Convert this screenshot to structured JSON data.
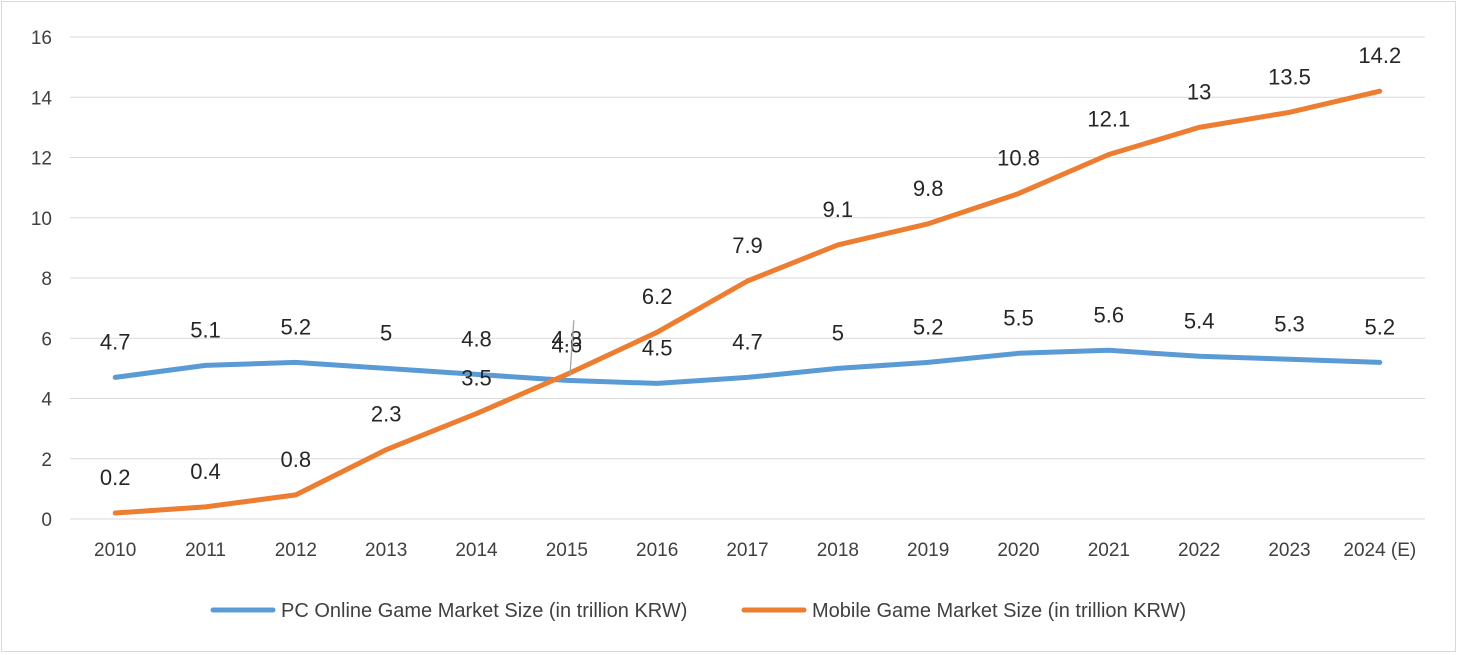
{
  "chart_data": {
    "type": "line",
    "title": "",
    "xlabel": "",
    "ylabel": "",
    "ylim": [
      0,
      16
    ],
    "yticks": [
      0,
      2,
      4,
      6,
      8,
      10,
      12,
      14,
      16
    ],
    "grid": "horizontal",
    "legend_position": "bottom",
    "categories": [
      "2010",
      "2011",
      "2012",
      "2013",
      "2014",
      "2015",
      "2016",
      "2017",
      "2018",
      "2019",
      "2020",
      "2021",
      "2022",
      "2023",
      "2024 (E)"
    ],
    "series": [
      {
        "name": "PC Online Game Market Size (in trillion KRW)",
        "color": "#5b9bd5",
        "values": [
          4.7,
          5.1,
          5.2,
          5.0,
          4.8,
          4.6,
          4.5,
          4.7,
          5.0,
          5.2,
          5.5,
          5.6,
          5.4,
          5.3,
          5.2
        ],
        "labels": [
          "4.7",
          "5.1",
          "5.2",
          "5",
          "4.8",
          "4.6",
          "4.5",
          "4.7",
          "5",
          "5.2",
          "5.5",
          "5.6",
          "5.4",
          "5.3",
          "5.2"
        ]
      },
      {
        "name": "Mobile Game Market Size (in trillion KRW)",
        "color": "#ed7d31",
        "values": [
          0.2,
          0.4,
          0.8,
          2.3,
          3.5,
          4.8,
          6.2,
          7.9,
          9.1,
          9.8,
          10.8,
          12.1,
          13.0,
          13.5,
          14.2
        ],
        "labels": [
          "0.2",
          "0.4",
          "0.8",
          "2.3",
          "3.5",
          "4.8",
          "6.2",
          "7.9",
          "9.1",
          "9.8",
          "10.8",
          "12.1",
          "13",
          "13.5",
          "14.2"
        ]
      }
    ]
  }
}
